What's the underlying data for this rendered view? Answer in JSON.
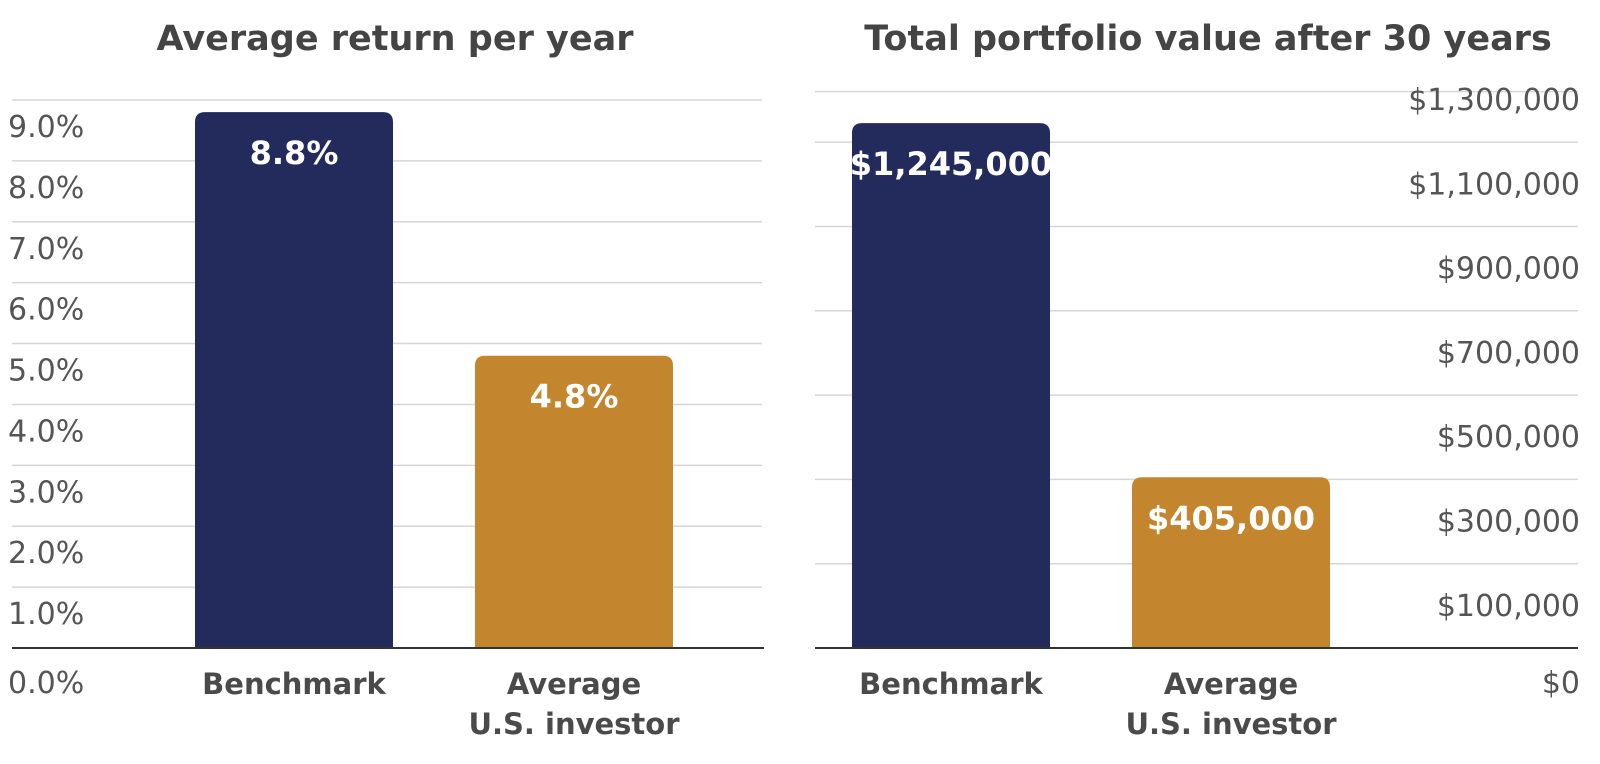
{
  "chart_data": [
    {
      "type": "bar",
      "title": "Average return per year",
      "categories": [
        "Benchmark",
        "Average U.S. investor"
      ],
      "category_lines": [
        [
          "Benchmark"
        ],
        [
          "Average",
          "U.S. investor"
        ]
      ],
      "values": [
        8.8,
        4.8
      ],
      "data_labels": [
        "8.8%",
        "4.8%"
      ],
      "colors": [
        "#222b5c",
        "#c3862f"
      ],
      "ylim": [
        0,
        9
      ],
      "yticks": [
        0,
        1,
        2,
        3,
        4,
        5,
        6,
        7,
        8,
        9
      ],
      "ytick_labels": [
        "0.0%",
        "1.0%",
        "2.0%",
        "3.0%",
        "4.0%",
        "5.0%",
        "6.0%",
        "7.0%",
        "8.0%",
        "9.0%"
      ],
      "grid": true,
      "axis_side": "left"
    },
    {
      "type": "bar",
      "title": "Total portfolio value after 30 years",
      "categories": [
        "Benchmark",
        "Average U.S. investor"
      ],
      "category_lines": [
        [
          "Benchmark"
        ],
        [
          "Average",
          "U.S. investor"
        ]
      ],
      "values": [
        1245000,
        405000
      ],
      "data_labels": [
        "$1,245,000",
        "$405,000"
      ],
      "colors": [
        "#222b5c",
        "#c3862f"
      ],
      "ylim": [
        0,
        1300000
      ],
      "yticks": [
        0,
        100000,
        300000,
        500000,
        700000,
        900000,
        1100000,
        1300000
      ],
      "ytick_labels": [
        "$0",
        "$100,000",
        "$300,000",
        "$500,000",
        "$700,000",
        "$900,000",
        "$1,100,000",
        "$1,300,000"
      ],
      "grid": true,
      "axis_side": "right"
    }
  ]
}
